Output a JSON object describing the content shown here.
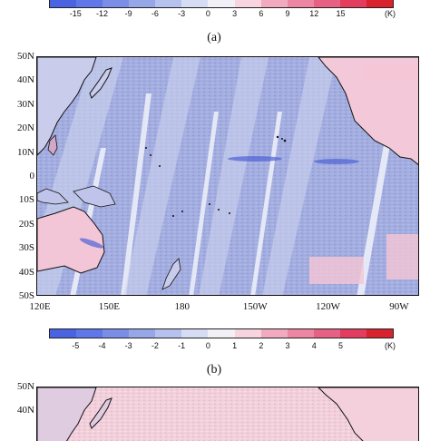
{
  "colorbar_a": {
    "ticks": [
      "-15",
      "-12",
      "-9",
      "-6",
      "-3",
      "0",
      "3",
      "6",
      "9",
      "12",
      "15"
    ],
    "unit": "(K)",
    "colors": [
      "#4a63e0",
      "#5f77e8",
      "#7a8ee8",
      "#97a6e6",
      "#b7c1ee",
      "#d6dcf4",
      "#f0f0f6",
      "#f8d4e0",
      "#f2aac0",
      "#ec86a3",
      "#e66183",
      "#e23c5f",
      "#d8232f"
    ]
  },
  "panel_a": {
    "label": "(a)"
  },
  "map_a": {
    "lat_labels": [
      "50N",
      "40N",
      "30N",
      "20N",
      "10N",
      "0",
      "10S",
      "20S",
      "30S",
      "40S",
      "50S"
    ],
    "lon_labels": [
      "120E",
      "150E",
      "180",
      "150W",
      "120W",
      "90W"
    ],
    "background": "#9ea9de"
  },
  "colorbar_b": {
    "ticks": [
      "-5",
      "-4",
      "-3",
      "-2",
      "-1",
      "0",
      "1",
      "2",
      "3",
      "4",
      "5"
    ],
    "unit": "(K)",
    "colors": [
      "#4a63e0",
      "#5f77e8",
      "#7a8ee8",
      "#97a6e6",
      "#b7c1ee",
      "#d6dcf4",
      "#f0f0f6",
      "#f8d4e0",
      "#f2aac0",
      "#ec86a3",
      "#e66183",
      "#e23c5f",
      "#d8232f"
    ]
  },
  "panel_b": {
    "label": "(b)"
  },
  "map_b": {
    "lat_labels": [
      "50N",
      "40N"
    ],
    "background": "#f0ccd8"
  }
}
